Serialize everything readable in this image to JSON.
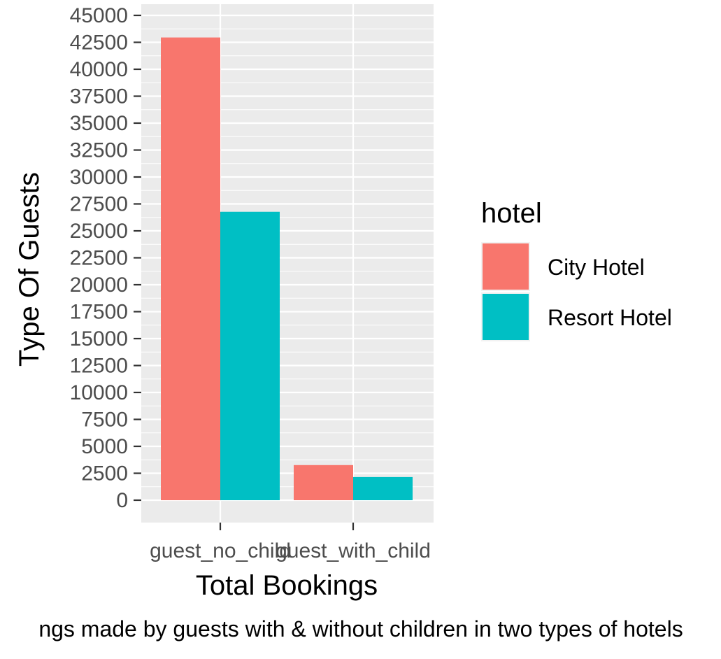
{
  "chart_data": {
    "type": "bar",
    "categories": [
      "guest_no_child",
      "guest_with_child"
    ],
    "series": [
      {
        "name": "City Hotel",
        "values": [
          42950,
          3260
        ],
        "color": "#F8766D"
      },
      {
        "name": "Resort Hotel",
        "values": [
          26770,
          2150
        ],
        "color": "#00BFC4"
      }
    ],
    "xlabel": "Total Bookings",
    "ylabel": "Type Of Guests",
    "ylim": [
      0,
      45000
    ],
    "yticks": [
      0,
      2500,
      5000,
      7500,
      10000,
      12500,
      15000,
      17500,
      20000,
      22500,
      25000,
      27500,
      30000,
      32500,
      35000,
      37500,
      40000,
      42500,
      45000
    ],
    "legend_title": "hotel",
    "legend_position": "right",
    "grid": true,
    "caption": "ngs made by guests with & without children in two types of hotels"
  }
}
